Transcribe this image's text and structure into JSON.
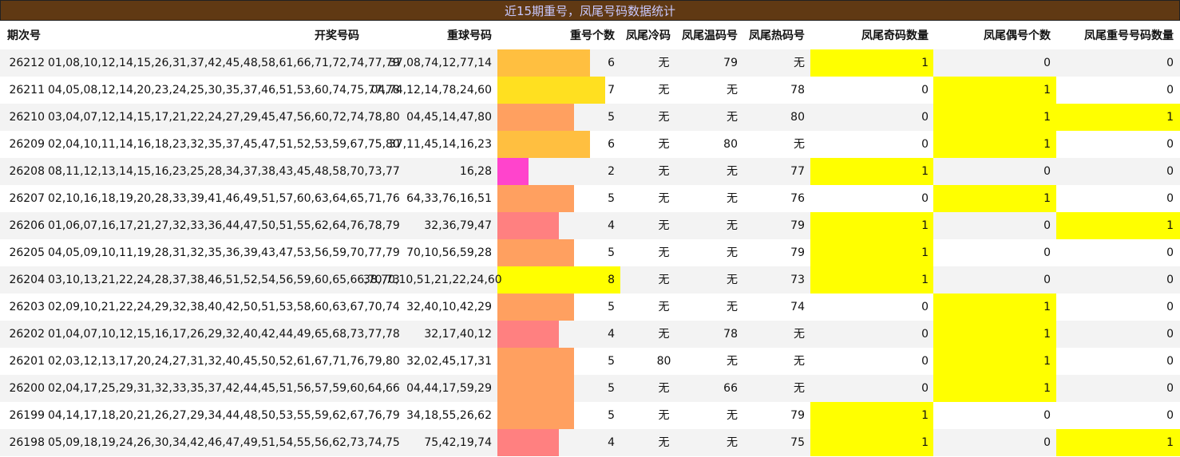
{
  "title": "近15期重号，凤尾号码数据统计",
  "headers": [
    "期次号",
    "开奖号码",
    "重球号码",
    "重号个数",
    "凤尾冷码",
    "凤尾温码号",
    "凤尾热码号",
    "凤尾奇码数量",
    "凤尾偶号个数",
    "凤尾重号号码数量"
  ],
  "bar_max": 8,
  "count_colors": {
    "2": "#ff44cc",
    "4": "#ff8080",
    "5": "#ffa060",
    "6": "#ffbf40",
    "7": "#ffe020",
    "8": "#ffff00"
  },
  "rows": [
    {
      "period": "26212",
      "draw": "01,08,10,12,14,15,26,31,37,42,45,48,58,61,66,71,72,74,77,79",
      "repeat": "37,08,74,12,77,14",
      "count": "6",
      "cold": "无",
      "warm": "79",
      "hot": "无",
      "odd": "1",
      "even": "0",
      "tailrep": "0"
    },
    {
      "period": "26211",
      "draw": "04,05,08,12,14,20,23,24,25,30,35,37,46,51,53,60,74,75,77,78",
      "repeat": "04,74,12,14,78,24,60",
      "count": "7",
      "cold": "无",
      "warm": "无",
      "hot": "78",
      "odd": "0",
      "even": "1",
      "tailrep": "0"
    },
    {
      "period": "26210",
      "draw": "03,04,07,12,14,15,17,21,22,24,27,29,45,47,56,60,72,74,78,80",
      "repeat": "04,45,14,47,80",
      "count": "5",
      "cold": "无",
      "warm": "无",
      "hot": "80",
      "odd": "0",
      "even": "1",
      "tailrep": "1"
    },
    {
      "period": "26209",
      "draw": "02,04,10,11,14,16,18,23,32,35,37,45,47,51,52,53,59,67,75,80",
      "repeat": "37,11,45,14,16,23",
      "count": "6",
      "cold": "无",
      "warm": "80",
      "hot": "无",
      "odd": "0",
      "even": "1",
      "tailrep": "0"
    },
    {
      "period": "26208",
      "draw": "08,11,12,13,14,15,16,23,25,28,34,37,38,43,45,48,58,70,73,77",
      "repeat": "16,28",
      "count": "2",
      "cold": "无",
      "warm": "无",
      "hot": "77",
      "odd": "1",
      "even": "0",
      "tailrep": "0"
    },
    {
      "period": "26207",
      "draw": "02,10,16,18,19,20,28,33,39,41,46,49,51,57,60,63,64,65,71,76",
      "repeat": "64,33,76,16,51",
      "count": "5",
      "cold": "无",
      "warm": "无",
      "hot": "76",
      "odd": "0",
      "even": "1",
      "tailrep": "0"
    },
    {
      "period": "26206",
      "draw": "01,06,07,16,17,21,27,32,33,36,44,47,50,51,55,62,64,76,78,79",
      "repeat": "32,36,79,47",
      "count": "4",
      "cold": "无",
      "warm": "无",
      "hot": "79",
      "odd": "1",
      "even": "0",
      "tailrep": "1"
    },
    {
      "period": "26205",
      "draw": "04,05,09,10,11,19,28,31,32,35,36,39,43,47,53,56,59,70,77,79",
      "repeat": "70,10,56,59,28",
      "count": "5",
      "cold": "无",
      "warm": "无",
      "hot": "79",
      "odd": "1",
      "even": "0",
      "tailrep": "0"
    },
    {
      "period": "26204",
      "draw": "03,10,13,21,22,24,28,37,38,46,51,52,54,56,59,60,65,66,70,73",
      "repeat": "38,70,10,51,21,22,24,60",
      "count": "8",
      "cold": "无",
      "warm": "无",
      "hot": "73",
      "odd": "1",
      "even": "0",
      "tailrep": "0"
    },
    {
      "period": "26203",
      "draw": "02,09,10,21,22,24,29,32,38,40,42,50,51,53,58,60,63,67,70,74",
      "repeat": "32,40,10,42,29",
      "count": "5",
      "cold": "无",
      "warm": "无",
      "hot": "74",
      "odd": "0",
      "even": "1",
      "tailrep": "0"
    },
    {
      "period": "26202",
      "draw": "01,04,07,10,12,15,16,17,26,29,32,40,42,44,49,65,68,73,77,78",
      "repeat": "32,17,40,12",
      "count": "4",
      "cold": "无",
      "warm": "78",
      "hot": "无",
      "odd": "0",
      "even": "1",
      "tailrep": "0"
    },
    {
      "period": "26201",
      "draw": "02,03,12,13,17,20,24,27,31,32,40,45,50,52,61,67,71,76,79,80",
      "repeat": "32,02,45,17,31",
      "count": "5",
      "cold": "80",
      "warm": "无",
      "hot": "无",
      "odd": "0",
      "even": "1",
      "tailrep": "0"
    },
    {
      "period": "26200",
      "draw": "02,04,17,25,29,31,32,33,35,37,42,44,45,51,56,57,59,60,64,66",
      "repeat": "04,44,17,59,29",
      "count": "5",
      "cold": "无",
      "warm": "66",
      "hot": "无",
      "odd": "0",
      "even": "1",
      "tailrep": "0"
    },
    {
      "period": "26199",
      "draw": "04,14,17,18,20,21,26,27,29,34,44,48,50,53,55,59,62,67,76,79",
      "repeat": "34,18,55,26,62",
      "count": "5",
      "cold": "无",
      "warm": "无",
      "hot": "79",
      "odd": "1",
      "even": "0",
      "tailrep": "0"
    },
    {
      "period": "26198",
      "draw": "05,09,18,19,24,26,30,34,42,46,47,49,51,54,55,56,62,73,74,75",
      "repeat": "75,42,19,74",
      "count": "4",
      "cold": "无",
      "warm": "无",
      "hot": "75",
      "odd": "1",
      "even": "0",
      "tailrep": "1"
    }
  ]
}
